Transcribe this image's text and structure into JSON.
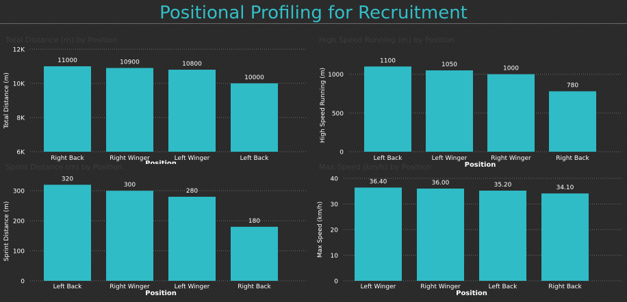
{
  "page": {
    "title": "Positional Profiling for Recruitment"
  },
  "colors": {
    "bar": "#2fbcc6",
    "text": "#ffffff",
    "grid": "#6b6b6b",
    "title": "#33bfc8"
  },
  "chart_data": [
    {
      "type": "bar",
      "title": "Total Distance (m) by Position",
      "categories": [
        "Right Back",
        "Right Winger",
        "Left Winger",
        "Left Back"
      ],
      "values": [
        11000,
        10900,
        10800,
        10000
      ],
      "value_labels": [
        "11000",
        "10900",
        "10800",
        "10000"
      ],
      "xlabel": "Position",
      "ylabel": "Total Distance (m)",
      "ylim": [
        6000,
        12000
      ],
      "yticks": [
        6000,
        8000,
        10000,
        12000
      ],
      "ytick_labels": [
        "6K",
        "8K",
        "10K",
        "12K"
      ],
      "grid": true
    },
    {
      "type": "bar",
      "title": "High Speed Running (m) by Position",
      "categories": [
        "Left Back",
        "Left Winger",
        "Right Winger",
        "Right Back"
      ],
      "values": [
        1100,
        1050,
        1000,
        780
      ],
      "value_labels": [
        "1100",
        "1050",
        "1000",
        "780"
      ],
      "xlabel": "Position",
      "ylabel": "High Speed Running (m)",
      "ylim": [
        0,
        1200
      ],
      "yticks": [
        0,
        500,
        1000
      ],
      "ytick_labels": [
        "0",
        "500",
        "1000"
      ],
      "grid": true
    },
    {
      "type": "bar",
      "title": "Sprint Distance (m) by Position",
      "categories": [
        "Left Back",
        "Right Winger",
        "Left Winger",
        "Right Back"
      ],
      "values": [
        320,
        300,
        280,
        180
      ],
      "value_labels": [
        "320",
        "300",
        "280",
        "180"
      ],
      "xlabel": "Position",
      "ylabel": "Sprint Distance (m)",
      "ylim": [
        0,
        330
      ],
      "yticks": [
        0,
        100,
        200,
        300
      ],
      "ytick_labels": [
        "0",
        "100",
        "200",
        "300"
      ],
      "grid": true
    },
    {
      "type": "bar",
      "title": "Max Speed (km/h) by Position",
      "categories": [
        "Left Winger",
        "Right Winger",
        "Left Back",
        "Right Back"
      ],
      "values": [
        36.4,
        36.0,
        35.2,
        34.1
      ],
      "value_labels": [
        "36.40",
        "36.00",
        "35.20",
        "34.10"
      ],
      "xlabel": "Position",
      "ylabel": "Max Speed (km/h)",
      "ylim": [
        0,
        40
      ],
      "yticks": [
        0,
        10,
        20,
        30,
        40
      ],
      "ytick_labels": [
        "0",
        "10",
        "20",
        "30",
        "40"
      ],
      "grid": true
    }
  ]
}
